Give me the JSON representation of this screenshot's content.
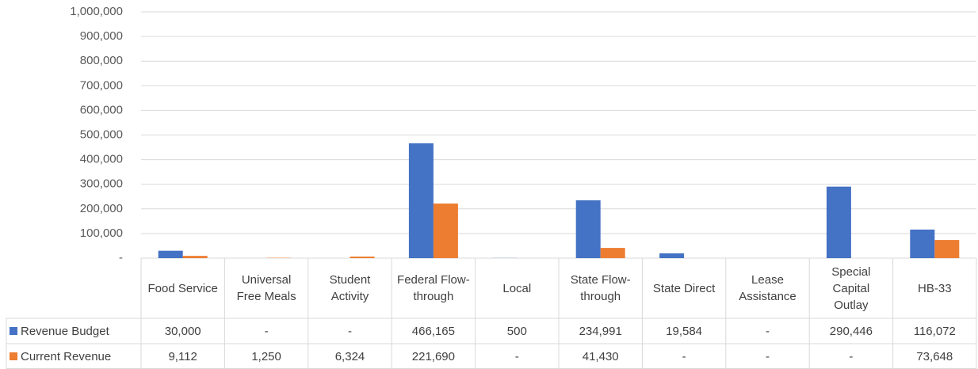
{
  "chart_data": {
    "type": "bar",
    "categories": [
      "Food Service",
      "Universal Free Meals",
      "Student Activity",
      "Federal Flow-through",
      "Local",
      "State Flow-through",
      "State Direct",
      "Lease Assistance",
      "Special Capital Outlay",
      "HB-33"
    ],
    "series": [
      {
        "name": "Revenue Budget",
        "color": "#4472c4",
        "values": [
          30000,
          0,
          0,
          466165,
          500,
          234991,
          19584,
          0,
          290446,
          116072
        ],
        "value_labels": [
          "30,000",
          "-",
          "-",
          "466,165",
          "500",
          "234,991",
          "19,584",
          "-",
          "290,446",
          "116,072"
        ]
      },
      {
        "name": "Current Revenue",
        "color": "#ed7d31",
        "values": [
          9112,
          1250,
          6324,
          221690,
          0,
          41430,
          0,
          0,
          0,
          73648
        ],
        "value_labels": [
          "9,112",
          "1,250",
          "6,324",
          "221,690",
          "-",
          "41,430",
          "-",
          "-",
          "-",
          "73,648"
        ]
      }
    ],
    "ylim": [
      0,
      1000000
    ],
    "yticks": [
      {
        "value": 0,
        "label": "-"
      },
      {
        "value": 100000,
        "label": "100,000"
      },
      {
        "value": 200000,
        "label": "200,000"
      },
      {
        "value": 300000,
        "label": "300,000"
      },
      {
        "value": 400000,
        "label": "400,000"
      },
      {
        "value": 500000,
        "label": "500,000"
      },
      {
        "value": 600000,
        "label": "600,000"
      },
      {
        "value": 700000,
        "label": "700,000"
      },
      {
        "value": 800000,
        "label": "800,000"
      },
      {
        "value": 900000,
        "label": "900,000"
      },
      {
        "value": 1000000,
        "label": "1,000,000"
      }
    ],
    "grid": true
  }
}
